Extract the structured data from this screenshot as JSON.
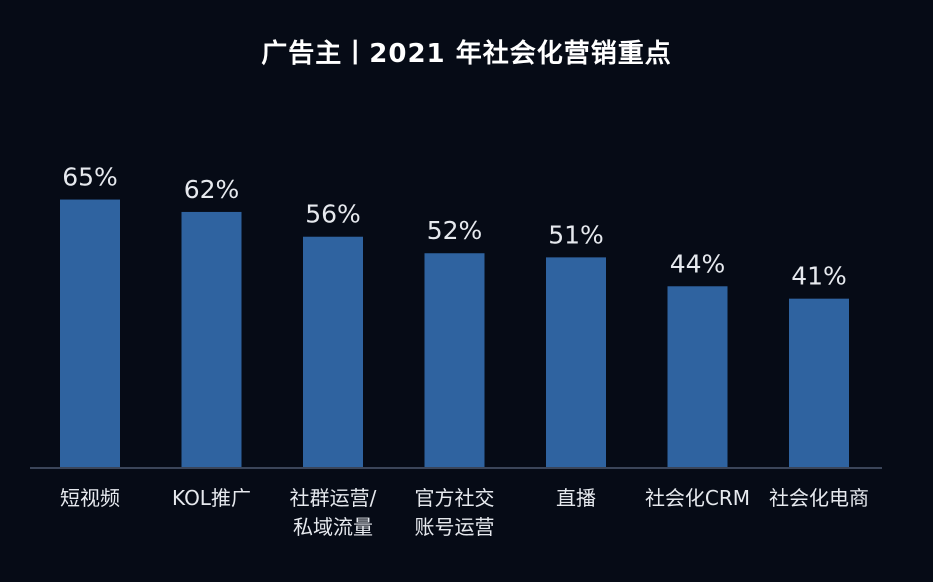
{
  "chart_data": {
    "type": "bar",
    "title": "广告主丨2021 年社会化营销重点",
    "categories": [
      [
        "短视频"
      ],
      [
        "KOL推广"
      ],
      [
        "社群运营/",
        "私域流量"
      ],
      [
        "官方社交",
        "账号运营"
      ],
      [
        "直播"
      ],
      [
        "社会化CRM"
      ],
      [
        "社会化电商"
      ]
    ],
    "values": [
      65,
      62,
      56,
      52,
      51,
      44,
      41
    ],
    "value_labels": [
      "65%",
      "62%",
      "56%",
      "52%",
      "51%",
      "44%",
      "41%"
    ],
    "xlabel": "",
    "ylabel": "",
    "ylim": [
      0,
      100
    ],
    "grid": false,
    "colors": {
      "bar": "#2f63a0",
      "background": "#060b16",
      "text": "#e6e9ee",
      "axis": "#3b4559"
    }
  }
}
